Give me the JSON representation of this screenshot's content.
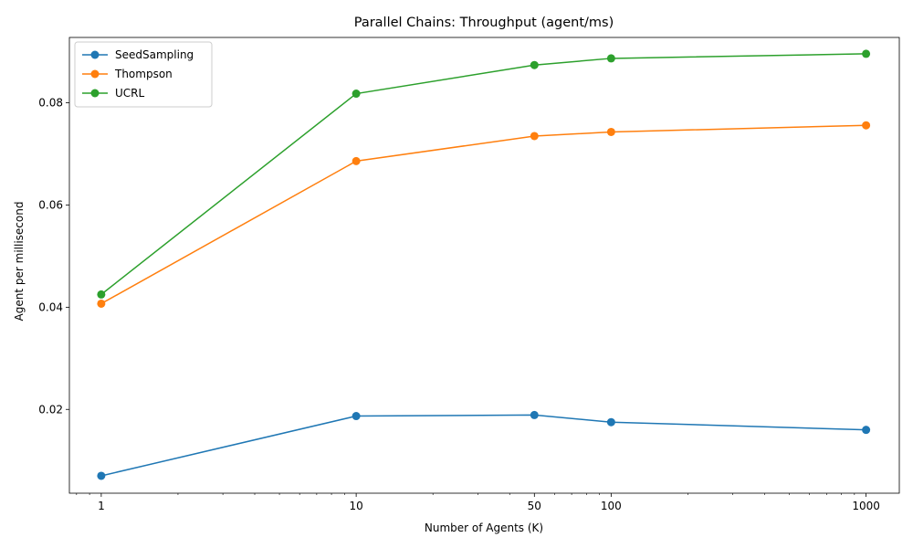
{
  "chart_data": {
    "type": "line",
    "title": "Parallel Chains: Throughput (agent/ms)",
    "xlabel": "Number of Agents (K)",
    "ylabel": "Agent per millisecond",
    "x_scale": "log",
    "xlim": [
      0.75,
      1350
    ],
    "ylim": [
      0.0036,
      0.0928
    ],
    "x": [
      1,
      10,
      50,
      100,
      1000
    ],
    "x_tick_labels": [
      "1",
      "10",
      "50",
      "100",
      "1000"
    ],
    "y_ticks": [
      0.02,
      0.04,
      0.06,
      0.08
    ],
    "y_tick_labels": [
      "0.02",
      "0.04",
      "0.06",
      "0.08"
    ],
    "grid": false,
    "legend_position": "upper-left",
    "series": [
      {
        "name": "SeedSampling",
        "color": "#1f77b4",
        "values": [
          0.007,
          0.0187,
          0.0189,
          0.0175,
          0.016
        ]
      },
      {
        "name": "Thompson",
        "color": "#ff7f0e",
        "values": [
          0.0407,
          0.0686,
          0.0735,
          0.0743,
          0.0756
        ]
      },
      {
        "name": "UCRL",
        "color": "#2ca02c",
        "values": [
          0.0425,
          0.0818,
          0.0874,
          0.0887,
          0.0896
        ]
      }
    ]
  }
}
